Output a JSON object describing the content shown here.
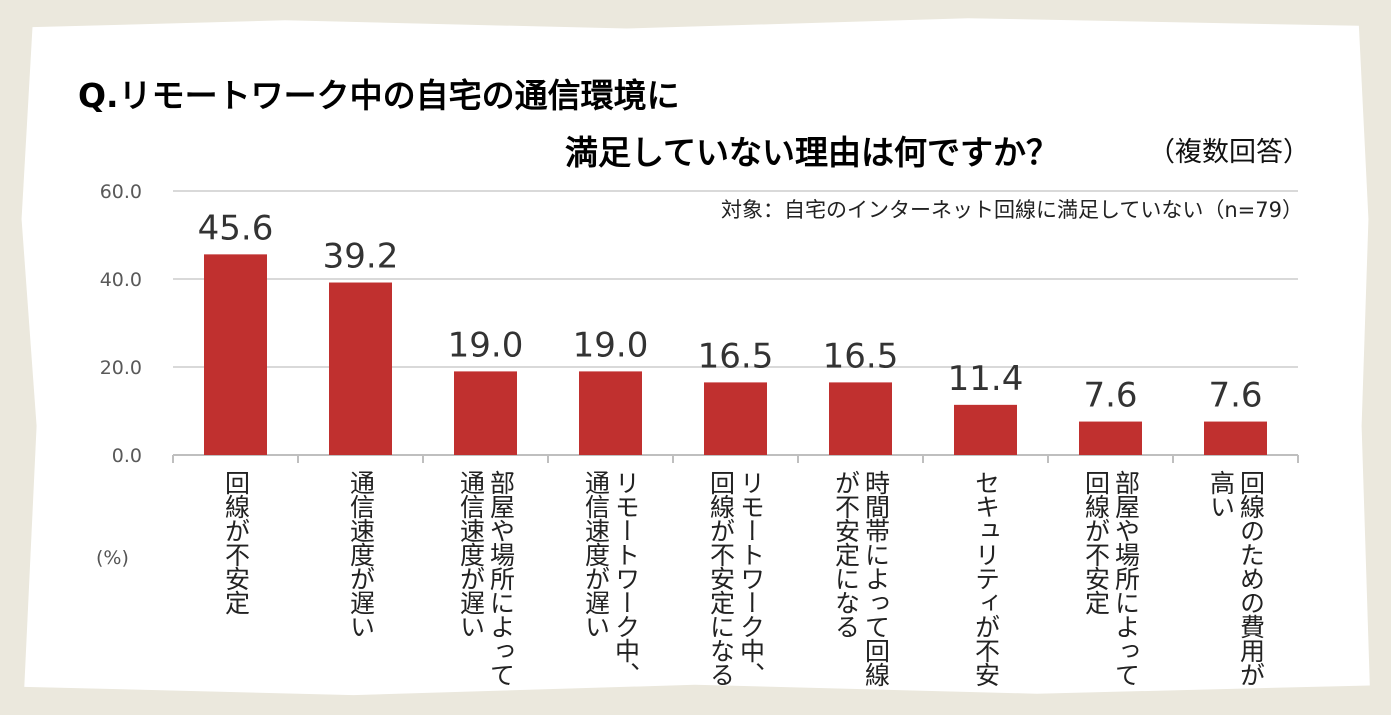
{
  "title_line1": "Q.リモートワーク中の自宅の通信環境に",
  "title_line2": "満足していない理由は何ですか？",
  "title_note": "（複数回答）",
  "subtitle": "対象：自宅のインターネット回線に満足していない（n=79）",
  "unit_label": "(%)",
  "colors": {
    "bar": "#c0302f",
    "grid": "#d9d9d9",
    "axis": "#bfbfbf",
    "background": "#ebe8dd"
  },
  "chart_data": {
    "type": "bar",
    "title": "Q.リモートワーク中の自宅の通信環境に満足していない理由は何ですか？（複数回答）",
    "ylabel": "(%)",
    "ylim": [
      0,
      60
    ],
    "yticks": [
      "0.0",
      "20.0",
      "40.0",
      "60.0"
    ],
    "grid": true,
    "categories": [
      "回線が不安定",
      "通信速度が遅い",
      "部屋や場所によって通信速度が遅い",
      "リモートワーク中、通信速度が遅い",
      "リモートワーク中、回線が不安定になる",
      "時間帯によって回線が不安定になる",
      "セキュリティが不安",
      "部屋や場所によって回線が不安定",
      "回線のための費用が高い"
    ],
    "values": [
      45.6,
      39.2,
      19.0,
      19.0,
      16.5,
      16.5,
      11.4,
      7.6,
      7.6
    ],
    "value_labels": [
      "45.6",
      "39.2",
      "19.0",
      "19.0",
      "16.5",
      "16.5",
      "11.4",
      "7.6",
      "7.6"
    ]
  }
}
